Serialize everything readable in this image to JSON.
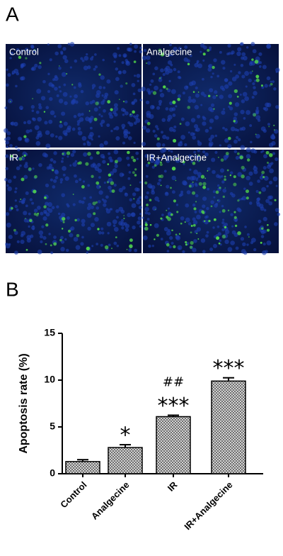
{
  "panel_a": {
    "label": "A",
    "images": [
      "Control",
      "Analgecine",
      "IR",
      "IR+Analgecine"
    ]
  },
  "chart_data": {
    "type": "bar",
    "panel_label": "B",
    "ylabel": "Apoptosis rate (%)",
    "categories": [
      "Control",
      "Analgecine",
      "IR",
      "IR+Analgecine"
    ],
    "values": [
      1.3,
      2.8,
      6.1,
      9.9
    ],
    "errors": [
      0.2,
      0.3,
      0.15,
      0.35
    ],
    "color": "#bbbbbb",
    "ylim": [
      0,
      15
    ],
    "yticks": [
      0,
      5,
      10,
      15
    ],
    "annotations": [
      {
        "text": "*",
        "category": "Analgecine"
      },
      {
        "text": "***",
        "category": "IR"
      },
      {
        "text": "##",
        "category": "IR"
      },
      {
        "text": "***",
        "category": "IR+Analgecine"
      }
    ]
  }
}
